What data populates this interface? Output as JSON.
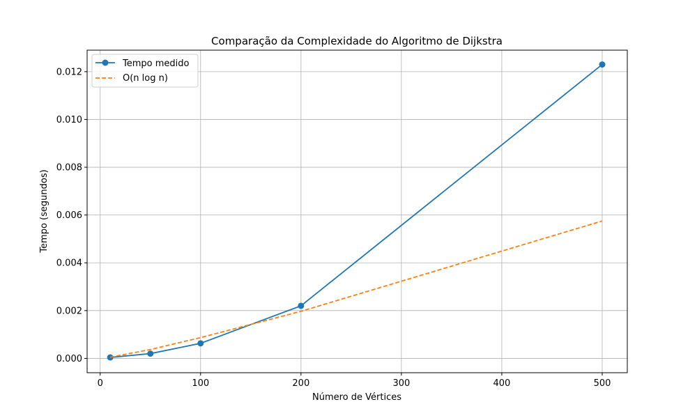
{
  "chart_data": {
    "type": "line",
    "title": "Comparação da Complexidade do Algoritmo de Dijkstra",
    "xlabel": "Número de Vértices",
    "ylabel": "Tempo (segundos)",
    "xlim": [
      -13,
      525
    ],
    "ylim": [
      -0.0006,
      0.0129
    ],
    "xticks": [
      0,
      100,
      200,
      300,
      400,
      500
    ],
    "xtick_labels": [
      "0",
      "100",
      "200",
      "300",
      "400",
      "500"
    ],
    "yticks": [
      0,
      0.002,
      0.004,
      0.006,
      0.008,
      0.01,
      0.012
    ],
    "ytick_labels": [
      "0.000",
      "0.002",
      "0.004",
      "0.006",
      "0.008",
      "0.010",
      "0.012"
    ],
    "grid": true,
    "legend_position": "top-left",
    "x": [
      10,
      50,
      100,
      200,
      500
    ],
    "series": [
      {
        "name": "Tempo medido",
        "values": [
          4e-05,
          0.0002,
          0.00063,
          0.0022,
          0.0123
        ],
        "color": "#1f77b4",
        "style": "solid",
        "marker": "circle"
      },
      {
        "name": "O(n log n)",
        "values": [
          5e-05,
          0.00037,
          0.00087,
          0.00197,
          0.00575
        ],
        "color": "#ff7f0e",
        "style": "dashed",
        "marker": "none"
      }
    ]
  }
}
